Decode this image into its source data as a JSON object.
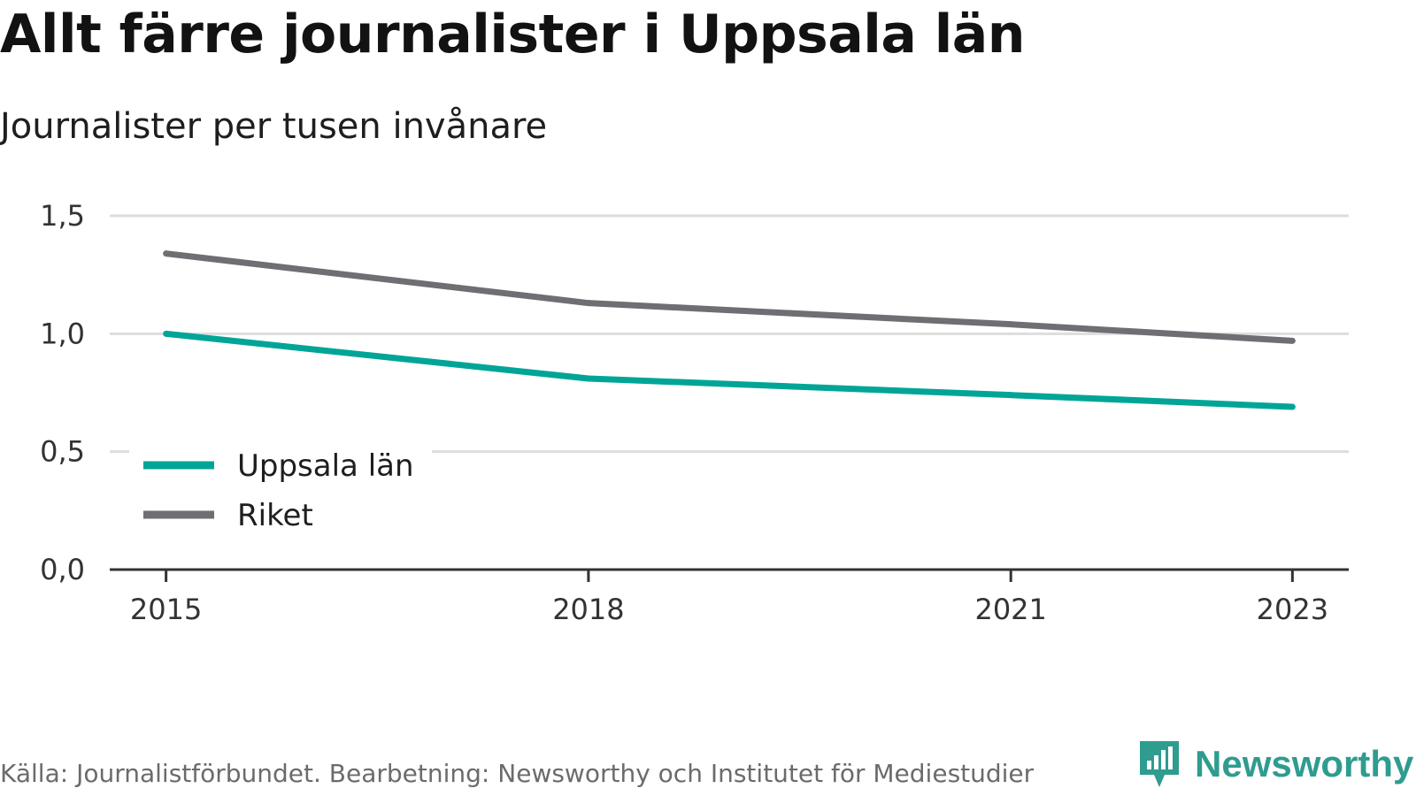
{
  "title": "Allt färre journalister i Uppsala län",
  "subtitle": "Journalister per tusen invånare",
  "source": "Källa: Journalistförbundet. Bearbetning: Newsworthy och Institutet för Mediestudier",
  "logo": {
    "text": "Newsworthy",
    "icon": "newsworthy-logo-icon",
    "color": "#2e9c8f"
  },
  "chart_data": {
    "type": "line",
    "x": [
      2015,
      2018,
      2021,
      2023
    ],
    "x_ticks": [
      "2015",
      "2018",
      "2021",
      "2023"
    ],
    "y_ticks": [
      "0,0",
      "0,5",
      "1,0",
      "1,5"
    ],
    "ylim": [
      0,
      1.5
    ],
    "xlim": [
      2014.6,
      2023.4
    ],
    "grid": true,
    "legend_position": "bottom-left",
    "series": [
      {
        "name": "Uppsala län",
        "color": "#00a597",
        "values": [
          1.0,
          0.81,
          0.74,
          0.69
        ]
      },
      {
        "name": "Riket",
        "color": "#6e6e73",
        "values": [
          1.34,
          1.13,
          1.04,
          0.97
        ]
      }
    ]
  }
}
